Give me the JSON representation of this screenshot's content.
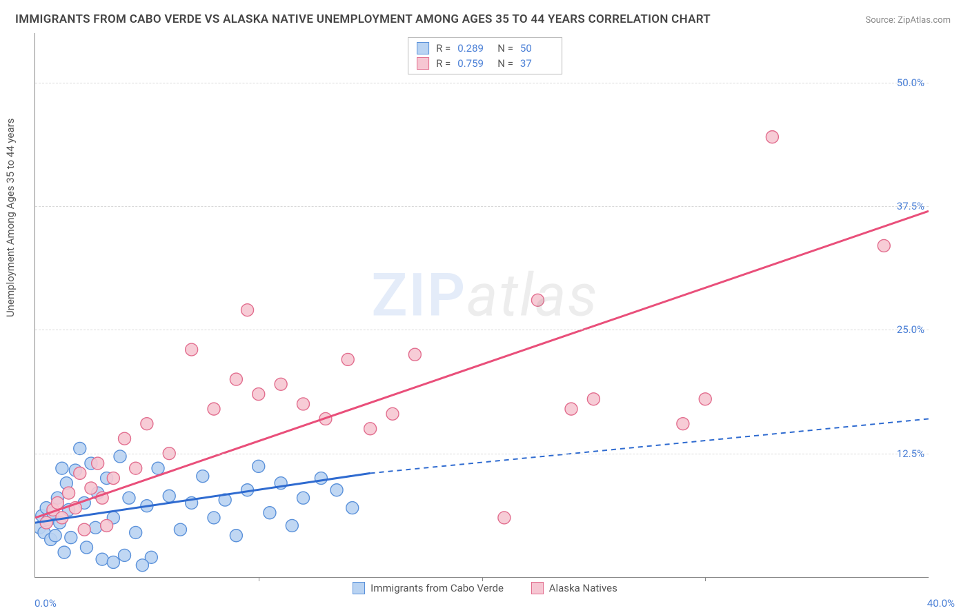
{
  "title": "IMMIGRANTS FROM CABO VERDE VS ALASKA NATIVE UNEMPLOYMENT AMONG AGES 35 TO 44 YEARS CORRELATION CHART",
  "source_prefix": "Source: ",
  "source_link": "ZipAtlas.com",
  "ylabel": "Unemployment Among Ages 35 to 44 years",
  "watermark_a": "ZIP",
  "watermark_b": "atlas",
  "axes": {
    "xlim": [
      0,
      40
    ],
    "ylim": [
      0,
      55
    ],
    "xtick_start": "0.0%",
    "xtick_end": "40.0%",
    "xtick_positions": [
      10,
      20,
      30
    ],
    "ytick_positions": [
      12.5,
      25.0,
      37.5,
      50.0
    ],
    "ytick_labels": [
      "12.5%",
      "25.0%",
      "37.5%",
      "50.0%"
    ],
    "grid_color": "#d8d8d8",
    "axis_color": "#888888",
    "tick_font_color": "#4a7fd6",
    "background": "#ffffff"
  },
  "series": {
    "blue": {
      "label": "Immigrants from Cabo Verde",
      "R": "0.289",
      "N": "50",
      "fill": "#b9d3f2",
      "stroke": "#5a91da",
      "line_color": "#2f6bd0",
      "marker_radius": 9,
      "line_width": 3,
      "trend": {
        "x1": 0,
        "y1": 5.5,
        "x2": 15,
        "y2": 10.5,
        "dash_x2": 40,
        "dash_y2": 16.0
      },
      "points": [
        [
          0.2,
          5.0
        ],
        [
          0.3,
          6.2
        ],
        [
          0.4,
          4.5
        ],
        [
          0.5,
          7.0
        ],
        [
          0.6,
          5.8
        ],
        [
          0.7,
          3.8
        ],
        [
          0.8,
          6.5
        ],
        [
          0.9,
          4.2
        ],
        [
          1.0,
          8.0
        ],
        [
          1.1,
          5.5
        ],
        [
          1.2,
          11.0
        ],
        [
          1.3,
          2.5
        ],
        [
          1.4,
          9.5
        ],
        [
          1.5,
          6.8
        ],
        [
          1.6,
          4.0
        ],
        [
          1.8,
          10.8
        ],
        [
          2.0,
          13.0
        ],
        [
          2.2,
          7.5
        ],
        [
          2.3,
          3.0
        ],
        [
          2.5,
          11.5
        ],
        [
          2.7,
          5.0
        ],
        [
          2.8,
          8.5
        ],
        [
          3.0,
          1.8
        ],
        [
          3.2,
          10.0
        ],
        [
          3.5,
          6.0
        ],
        [
          3.8,
          12.2
        ],
        [
          4.0,
          2.2
        ],
        [
          4.2,
          8.0
        ],
        [
          4.5,
          4.5
        ],
        [
          5.0,
          7.2
        ],
        [
          5.5,
          11.0
        ],
        [
          6.0,
          8.2
        ],
        [
          6.5,
          4.8
        ],
        [
          7.0,
          7.5
        ],
        [
          7.5,
          10.2
        ],
        [
          8.0,
          6.0
        ],
        [
          8.5,
          7.8
        ],
        [
          9.0,
          4.2
        ],
        [
          9.5,
          8.8
        ],
        [
          10.0,
          11.2
        ],
        [
          10.5,
          6.5
        ],
        [
          11.0,
          9.5
        ],
        [
          11.5,
          5.2
        ],
        [
          12.0,
          8.0
        ],
        [
          12.8,
          10.0
        ],
        [
          13.5,
          8.8
        ],
        [
          14.2,
          7.0
        ],
        [
          5.2,
          2.0
        ],
        [
          3.5,
          1.5
        ],
        [
          4.8,
          1.2
        ]
      ]
    },
    "pink": {
      "label": "Alaska Natives",
      "R": "0.759",
      "N": "37",
      "fill": "#f6c6d2",
      "stroke": "#e26d8e",
      "line_color": "#e94f7a",
      "marker_radius": 9,
      "line_width": 3,
      "trend": {
        "x1": 0,
        "y1": 6.0,
        "x2": 40,
        "y2": 37.0
      },
      "points": [
        [
          0.5,
          5.5
        ],
        [
          0.8,
          6.8
        ],
        [
          1.0,
          7.5
        ],
        [
          1.2,
          6.0
        ],
        [
          1.5,
          8.5
        ],
        [
          1.8,
          7.0
        ],
        [
          2.0,
          10.5
        ],
        [
          2.5,
          9.0
        ],
        [
          2.8,
          11.5
        ],
        [
          3.0,
          8.0
        ],
        [
          3.5,
          10.0
        ],
        [
          4.0,
          14.0
        ],
        [
          4.5,
          11.0
        ],
        [
          5.0,
          15.5
        ],
        [
          6.0,
          12.5
        ],
        [
          7.0,
          23.0
        ],
        [
          8.0,
          17.0
        ],
        [
          9.0,
          20.0
        ],
        [
          9.5,
          27.0
        ],
        [
          10.0,
          18.5
        ],
        [
          11.0,
          19.5
        ],
        [
          12.0,
          17.5
        ],
        [
          13.0,
          16.0
        ],
        [
          14.0,
          22.0
        ],
        [
          15.0,
          15.0
        ],
        [
          16.0,
          16.5
        ],
        [
          17.0,
          22.5
        ],
        [
          21.0,
          6.0
        ],
        [
          22.5,
          28.0
        ],
        [
          24.0,
          17.0
        ],
        [
          25.0,
          18.0
        ],
        [
          29.0,
          15.5
        ],
        [
          30.0,
          18.0
        ],
        [
          33.0,
          44.5
        ],
        [
          38.0,
          33.5
        ],
        [
          2.2,
          4.8
        ],
        [
          3.2,
          5.2
        ]
      ]
    }
  },
  "legend_labels": {
    "R": "R =",
    "N": "N ="
  }
}
